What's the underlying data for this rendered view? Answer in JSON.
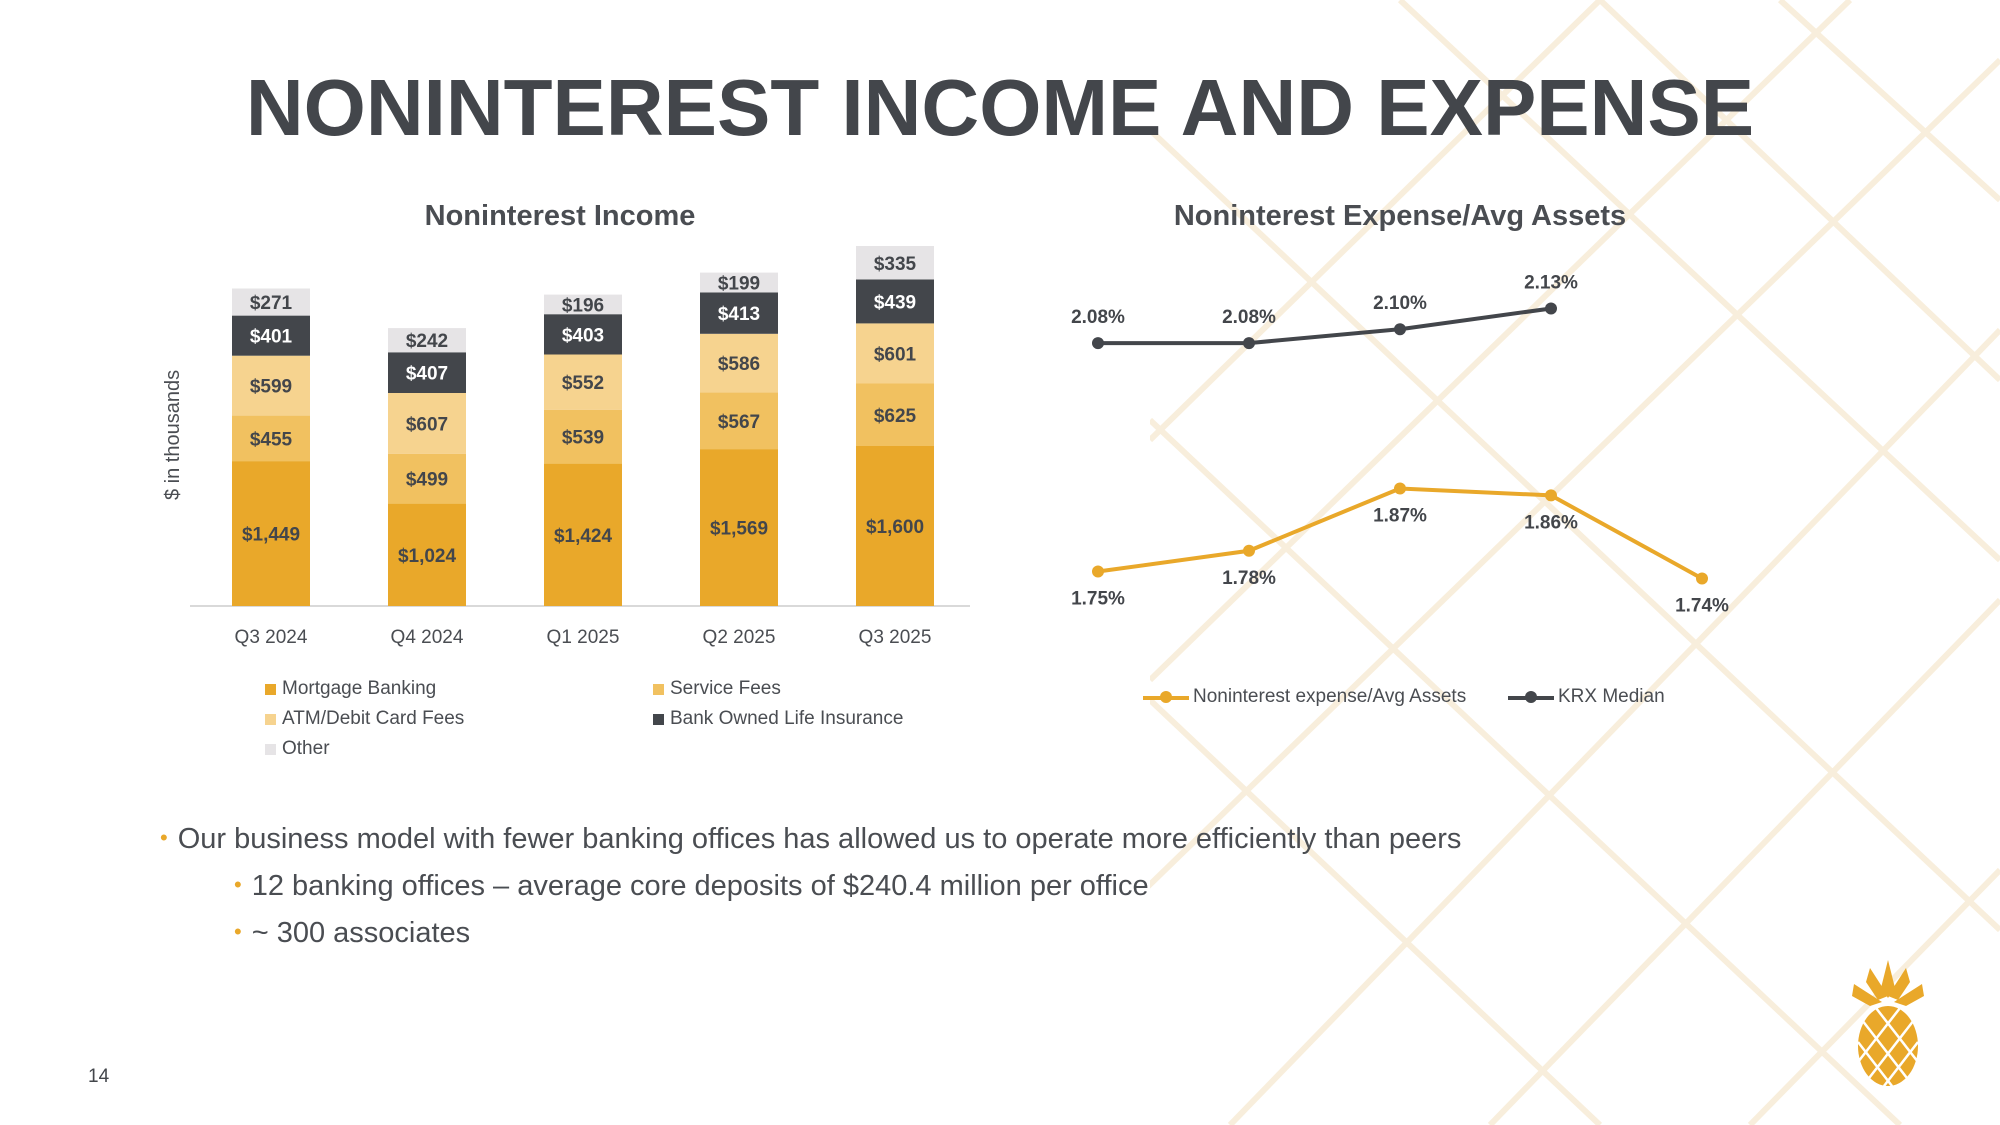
{
  "slide": {
    "title": "NONINTEREST INCOME AND EXPENSE",
    "page_number": "14",
    "bullets": [
      {
        "level": 1,
        "text": "Our business model with fewer banking offices has allowed us to operate more efficiently than peers"
      },
      {
        "level": 2,
        "text": "12 banking offices – average core deposits of $240.4 million per office"
      },
      {
        "level": 2,
        "text": "~ 300 associates"
      }
    ],
    "bullet_glyph": "•",
    "logo": "pineapple-logo-icon"
  },
  "colors": {
    "mortgage": "#e9a82a",
    "service": "#f1c160",
    "atm": "#f6d38f",
    "boli": "#43464b",
    "other": "#e6e4e6",
    "line_primary": "#e9a82a",
    "line_peer": "#43464b",
    "accent": "#e9a82a",
    "text": "#43464b"
  },
  "chart_data": [
    {
      "type": "bar",
      "stacked": true,
      "title": "Noninterest Income",
      "ylabel": "$ in thousands",
      "categories": [
        "Q3 2024",
        "Q4 2024",
        "Q1 2025",
        "Q2 2025",
        "Q3 2025"
      ],
      "series": [
        {
          "name": "Mortgage Banking",
          "color_key": "mortgage",
          "values": [
            1449,
            1024,
            1424,
            1569,
            1600
          ],
          "labels": [
            "$1,449",
            "$1,024",
            "$1,424",
            "$1,569",
            "$1,600"
          ]
        },
        {
          "name": "Service Fees",
          "color_key": "service",
          "values": [
            455,
            499,
            539,
            567,
            625
          ],
          "labels": [
            "$455",
            "$499",
            "$539",
            "$567",
            "$625"
          ]
        },
        {
          "name": "ATM/Debit Card Fees",
          "color_key": "atm",
          "values": [
            599,
            607,
            552,
            586,
            601
          ],
          "labels": [
            "$599",
            "$607",
            "$552",
            "$586",
            "$601"
          ]
        },
        {
          "name": "Bank Owned Life Insurance",
          "color_key": "boli",
          "values": [
            401,
            407,
            403,
            413,
            439
          ],
          "labels": [
            "$401",
            "$407",
            "$403",
            "$413",
            "$439"
          ]
        },
        {
          "name": "Other",
          "color_key": "other",
          "values": [
            271,
            242,
            196,
            199,
            335
          ],
          "labels": [
            "$271",
            "$242",
            "$196",
            "$199",
            "$335"
          ]
        }
      ],
      "ylim": [
        0,
        3600
      ],
      "legend": "bottom",
      "grid": false
    },
    {
      "type": "line",
      "title": "Noninterest Expense/Avg Assets",
      "categories": [
        "Q3 2024",
        "Q4 2024",
        "Q1 2025",
        "Q2 2025",
        "Q3 2025"
      ],
      "x_labels_visible": false,
      "series": [
        {
          "name": "Noninterest expense/Avg Assets",
          "color_key": "line_primary",
          "values": [
            1.75,
            1.78,
            1.87,
            1.86,
            1.74
          ],
          "labels": [
            "1.75%",
            "1.78%",
            "1.87%",
            "1.86%",
            "1.74%"
          ],
          "label_position": [
            "below",
            "below",
            "below",
            "below",
            "below"
          ]
        },
        {
          "name": "KRX Median",
          "color_key": "line_peer",
          "values": [
            2.08,
            2.08,
            2.1,
            2.13,
            null
          ],
          "labels": [
            "2.08%",
            "2.08%",
            "2.10%",
            "2.13%",
            null
          ],
          "label_position": [
            "above",
            "above",
            "above",
            "above",
            "above"
          ]
        }
      ],
      "ylim": [
        1.68,
        2.2
      ],
      "legend": "bottom",
      "grid": false
    }
  ]
}
